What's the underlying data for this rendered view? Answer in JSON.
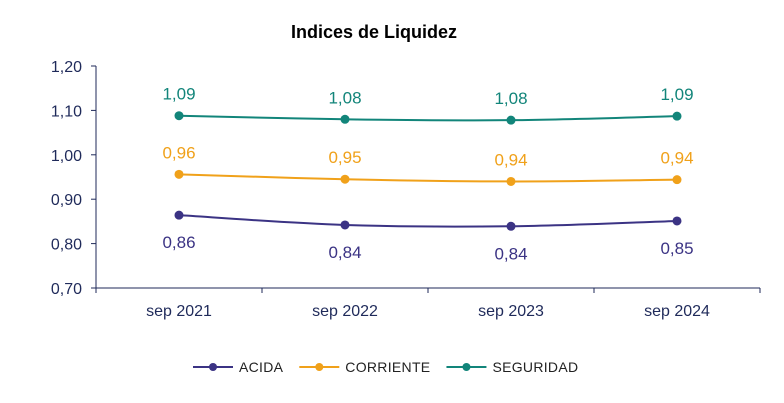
{
  "chart_data": {
    "type": "line",
    "title": "Indices de Liquidez",
    "categories": [
      "sep 2021",
      "sep 2022",
      "sep 2023",
      "sep 2024"
    ],
    "ylim": [
      0.7,
      1.2
    ],
    "yticks": [
      "0,70",
      "0,80",
      "0,90",
      "1,00",
      "1,10",
      "1,20"
    ],
    "ytick_values": [
      0.7,
      0.8,
      0.9,
      1.0,
      1.1,
      1.2
    ],
    "grid": false,
    "legend_position": "bottom",
    "series": [
      {
        "name": "ACIDA",
        "color": "#3b3384",
        "values": [
          0.864,
          0.842,
          0.839,
          0.851
        ],
        "labels": [
          "0,86",
          "0,84",
          "0,84",
          "0,85"
        ],
        "label_position": "below"
      },
      {
        "name": "CORRIENTE",
        "color": "#f0a11a",
        "values": [
          0.956,
          0.945,
          0.94,
          0.944
        ],
        "labels": [
          "0,96",
          "0,95",
          "0,94",
          "0,94"
        ],
        "label_position": "above"
      },
      {
        "name": "SEGURIDAD",
        "color": "#12857a",
        "values": [
          1.088,
          1.08,
          1.078,
          1.087
        ],
        "labels": [
          "1,09",
          "1,08",
          "1,08",
          "1,09"
        ],
        "label_position": "above"
      }
    ]
  }
}
